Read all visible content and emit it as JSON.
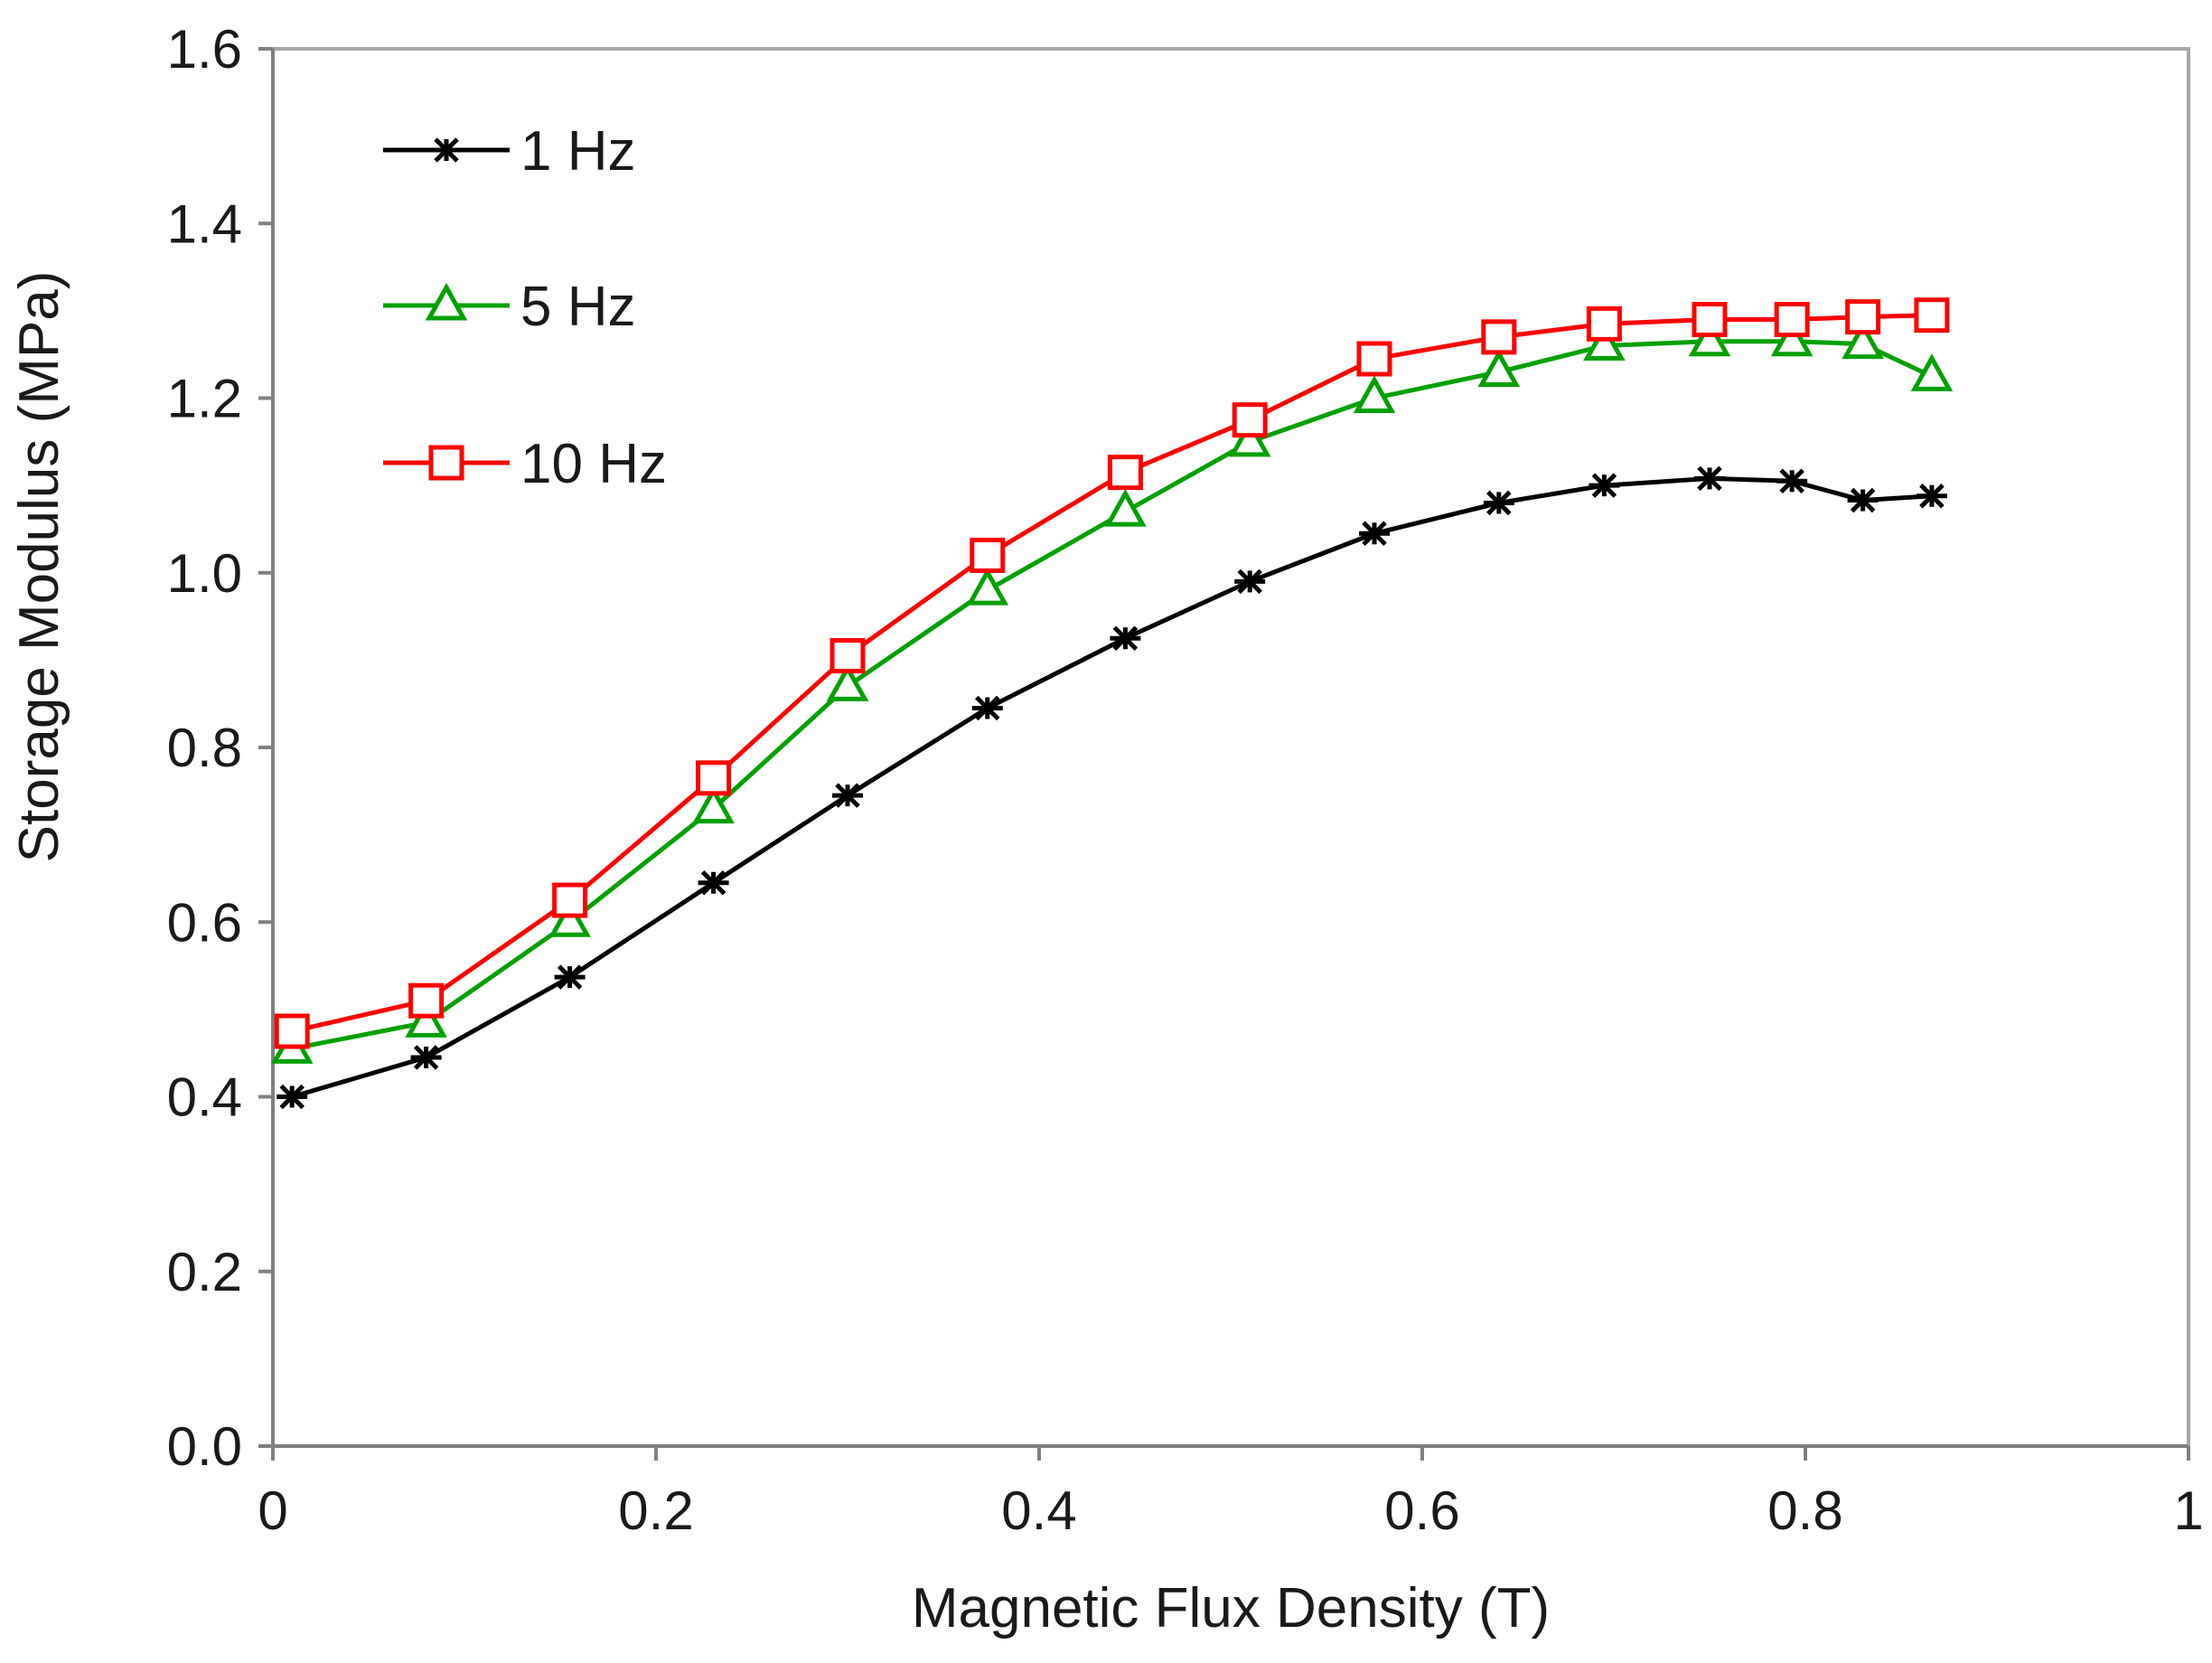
{
  "chart_data": {
    "type": "line",
    "title": "",
    "xlabel": "Magnetic Flux Density (T)",
    "ylabel": "Storage Modulus (MPa)",
    "xlim": [
      0,
      1
    ],
    "ylim": [
      0,
      1.6
    ],
    "xticks": [
      0,
      0.2,
      0.4,
      0.6,
      0.8,
      1
    ],
    "xtick_labels": [
      "0",
      "0.2",
      "0.4",
      "0.6",
      "0.8",
      "1"
    ],
    "yticks": [
      0,
      0.2,
      0.4,
      0.6,
      0.8,
      1.0,
      1.2,
      1.4,
      1.6
    ],
    "ytick_labels": [
      "0.0",
      "0.2",
      "0.4",
      "0.6",
      "0.8",
      "1.0",
      "1.2",
      "1.4",
      "1.6"
    ],
    "grid": false,
    "legend_position": "top-left",
    "x": [
      0.01,
      0.08,
      0.155,
      0.23,
      0.3,
      0.373,
      0.445,
      0.51,
      0.575,
      0.64,
      0.695,
      0.75,
      0.793,
      0.83,
      0.866
    ],
    "series": [
      {
        "name": "1 Hz",
        "color": "#000000",
        "marker": "star",
        "values": [
          0.4,
          0.445,
          0.537,
          0.645,
          0.745,
          0.845,
          0.925,
          0.99,
          1.045,
          1.08,
          1.1,
          1.108,
          1.105,
          1.083,
          1.088
        ]
      },
      {
        "name": "5 Hz",
        "color": "#00a000",
        "marker": "triangle",
        "values": [
          0.455,
          0.485,
          0.6,
          0.73,
          0.87,
          0.98,
          1.07,
          1.15,
          1.2,
          1.23,
          1.26,
          1.265,
          1.265,
          1.262,
          1.225
        ]
      },
      {
        "name": "10 Hz",
        "color": "#ff0000",
        "marker": "square",
        "values": [
          0.475,
          0.51,
          0.625,
          0.765,
          0.905,
          1.02,
          1.115,
          1.175,
          1.245,
          1.27,
          1.285,
          1.29,
          1.29,
          1.293,
          1.295
        ]
      }
    ]
  }
}
